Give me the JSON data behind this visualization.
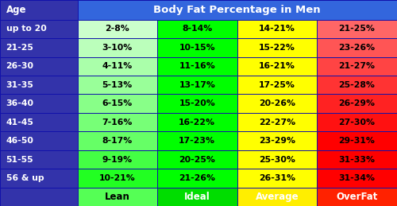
{
  "title": "Body Fat Percentage in Men",
  "age_col_header": "Age",
  "age_labels": [
    "up to 20",
    "21-25",
    "26-30",
    "31-35",
    "36-40",
    "41-45",
    "46-50",
    "51-55",
    "56 & up"
  ],
  "category_labels": [
    "Lean",
    "Ideal",
    "Average",
    "OverFat"
  ],
  "table_data": [
    [
      "2-8%",
      "8-14%",
      "14-21%",
      "21-25%"
    ],
    [
      "3-10%",
      "10-15%",
      "15-22%",
      "23-26%"
    ],
    [
      "4-11%",
      "11-16%",
      "16-21%",
      "21-27%"
    ],
    [
      "5-13%",
      "13-17%",
      "17-25%",
      "25-28%"
    ],
    [
      "6-15%",
      "15-20%",
      "20-26%",
      "26-29%"
    ],
    [
      "7-16%",
      "16-22%",
      "22-27%",
      "27-30%"
    ],
    [
      "8-17%",
      "17-23%",
      "23-29%",
      "29-31%"
    ],
    [
      "9-19%",
      "20-25%",
      "25-30%",
      "31-33%"
    ],
    [
      "10-21%",
      "21-26%",
      "26-31%",
      "31-34%"
    ]
  ],
  "lean_col_colors": [
    "#ccffcc",
    "#bbffbb",
    "#aaffaa",
    "#99ff99",
    "#88ff88",
    "#77ff77",
    "#66ff66",
    "#44ff44",
    "#22ff22"
  ],
  "ideal_col_colors": [
    "#00ff00",
    "#00ff00",
    "#00ff00",
    "#00ff00",
    "#00ff00",
    "#00ff00",
    "#00ff00",
    "#00ff00",
    "#00ff00"
  ],
  "average_col_colors": [
    "#ffff00",
    "#ffff00",
    "#ffff00",
    "#ffff00",
    "#ffff00",
    "#ffff00",
    "#ffff00",
    "#ffff00",
    "#ffff00"
  ],
  "overfat_col_colors": [
    "#ff6666",
    "#ff5555",
    "#ff4444",
    "#ff3333",
    "#ff2222",
    "#ff1111",
    "#ff0000",
    "#ff0000",
    "#ff0000"
  ],
  "header_bg": "#3366dd",
  "header_text_color": "#ffffff",
  "age_col_bg": "#3333aa",
  "age_text_color": "#ffffff",
  "cell_text_color": "#000000",
  "footer_text_colors": [
    "#000000",
    "#ffffff",
    "#ffffff",
    "#ffffff"
  ],
  "border_color": "#1111aa",
  "bg_color": "#2233bb",
  "lean_footer_bg": "#55ff55",
  "ideal_footer_bg": "#00dd00",
  "average_footer_bg": "#ffee00",
  "overfat_footer_bg": "#ff2200",
  "figwidth": 5.0,
  "figheight": 2.59,
  "dpi": 100
}
